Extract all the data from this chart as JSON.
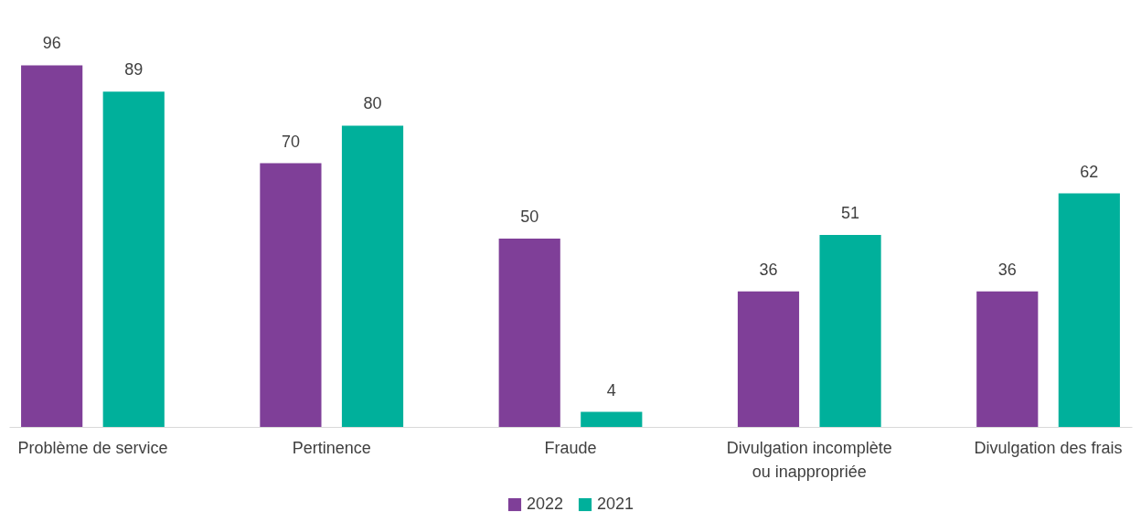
{
  "chart_data": {
    "type": "bar",
    "categories": [
      "Problème de service",
      "Pertinence",
      "Fraude",
      "Divulgation incomplète ou inappropriée",
      "Divulgation des frais"
    ],
    "series": [
      {
        "name": "2022",
        "color": "#7f3f98",
        "values": [
          96,
          70,
          50,
          36,
          36
        ]
      },
      {
        "name": "2021",
        "color": "#00b09b",
        "values": [
          89,
          80,
          4,
          51,
          62
        ]
      }
    ],
    "data_labels": true,
    "legend": "bottom",
    "tick_labels": "x"
  }
}
